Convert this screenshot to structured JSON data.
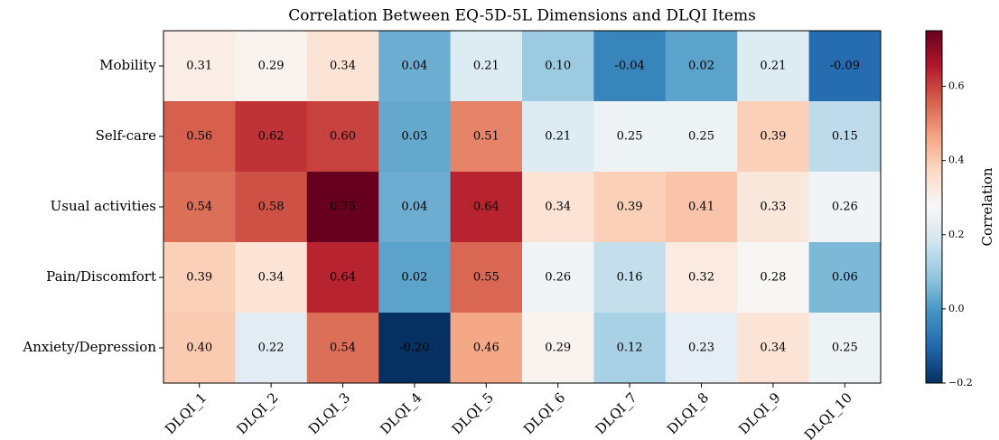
{
  "chart_data": {
    "type": "heatmap",
    "title": "Correlation Between EQ-5D-5L Dimensions and DLQI Items",
    "x_categories": [
      "DLQI_1",
      "DLQI_2",
      "DLQI_3",
      "DLQI_4",
      "DLQI_5",
      "DLQI_6",
      "DLQI_7",
      "DLQI_8",
      "DLQI_9",
      "DLQI_10"
    ],
    "y_categories": [
      "Mobility",
      "Self-care",
      "Usual activities",
      "Pain/Discomfort",
      "Anxiety/Depression"
    ],
    "values": [
      [
        0.31,
        0.29,
        0.34,
        0.04,
        0.21,
        0.1,
        -0.04,
        0.02,
        0.21,
        -0.09
      ],
      [
        0.56,
        0.62,
        0.6,
        0.03,
        0.51,
        0.21,
        0.25,
        0.25,
        0.39,
        0.15
      ],
      [
        0.54,
        0.58,
        0.75,
        0.04,
        0.64,
        0.34,
        0.39,
        0.41,
        0.33,
        0.26
      ],
      [
        0.39,
        0.34,
        0.64,
        0.02,
        0.55,
        0.26,
        0.16,
        0.32,
        0.28,
        0.06
      ],
      [
        0.4,
        0.22,
        0.54,
        -0.2,
        0.46,
        0.29,
        0.12,
        0.23,
        0.34,
        0.25
      ]
    ],
    "value_labels": [
      [
        "0.31",
        "0.29",
        "0.34",
        "0.04",
        "0.21",
        "0.10",
        "-0.04",
        "0.02",
        "0.21",
        "-0.09"
      ],
      [
        "0.56",
        "0.62",
        "0.60",
        "0.03",
        "0.51",
        "0.21",
        "0.25",
        "0.25",
        "0.39",
        "0.15"
      ],
      [
        "0.54",
        "0.58",
        "0.75",
        "0.04",
        "0.64",
        "0.34",
        "0.39",
        "0.41",
        "0.33",
        "0.26"
      ],
      [
        "0.39",
        "0.34",
        "0.64",
        "0.02",
        "0.55",
        "0.26",
        "0.16",
        "0.32",
        "0.28",
        "0.06"
      ],
      [
        "0.40",
        "0.22",
        "0.54",
        "-0.20",
        "0.46",
        "0.29",
        "0.12",
        "0.23",
        "0.34",
        "0.25"
      ]
    ],
    "colormap": "RdBu_r",
    "zlim": [
      -0.2,
      0.75
    ],
    "zticks": [
      {
        "value": -0.2,
        "label": "−0.2"
      },
      {
        "value": 0,
        "label": "0.0"
      },
      0.2,
      0.4,
      0.6
    ],
    "colorbar_label": "Correlation"
  }
}
